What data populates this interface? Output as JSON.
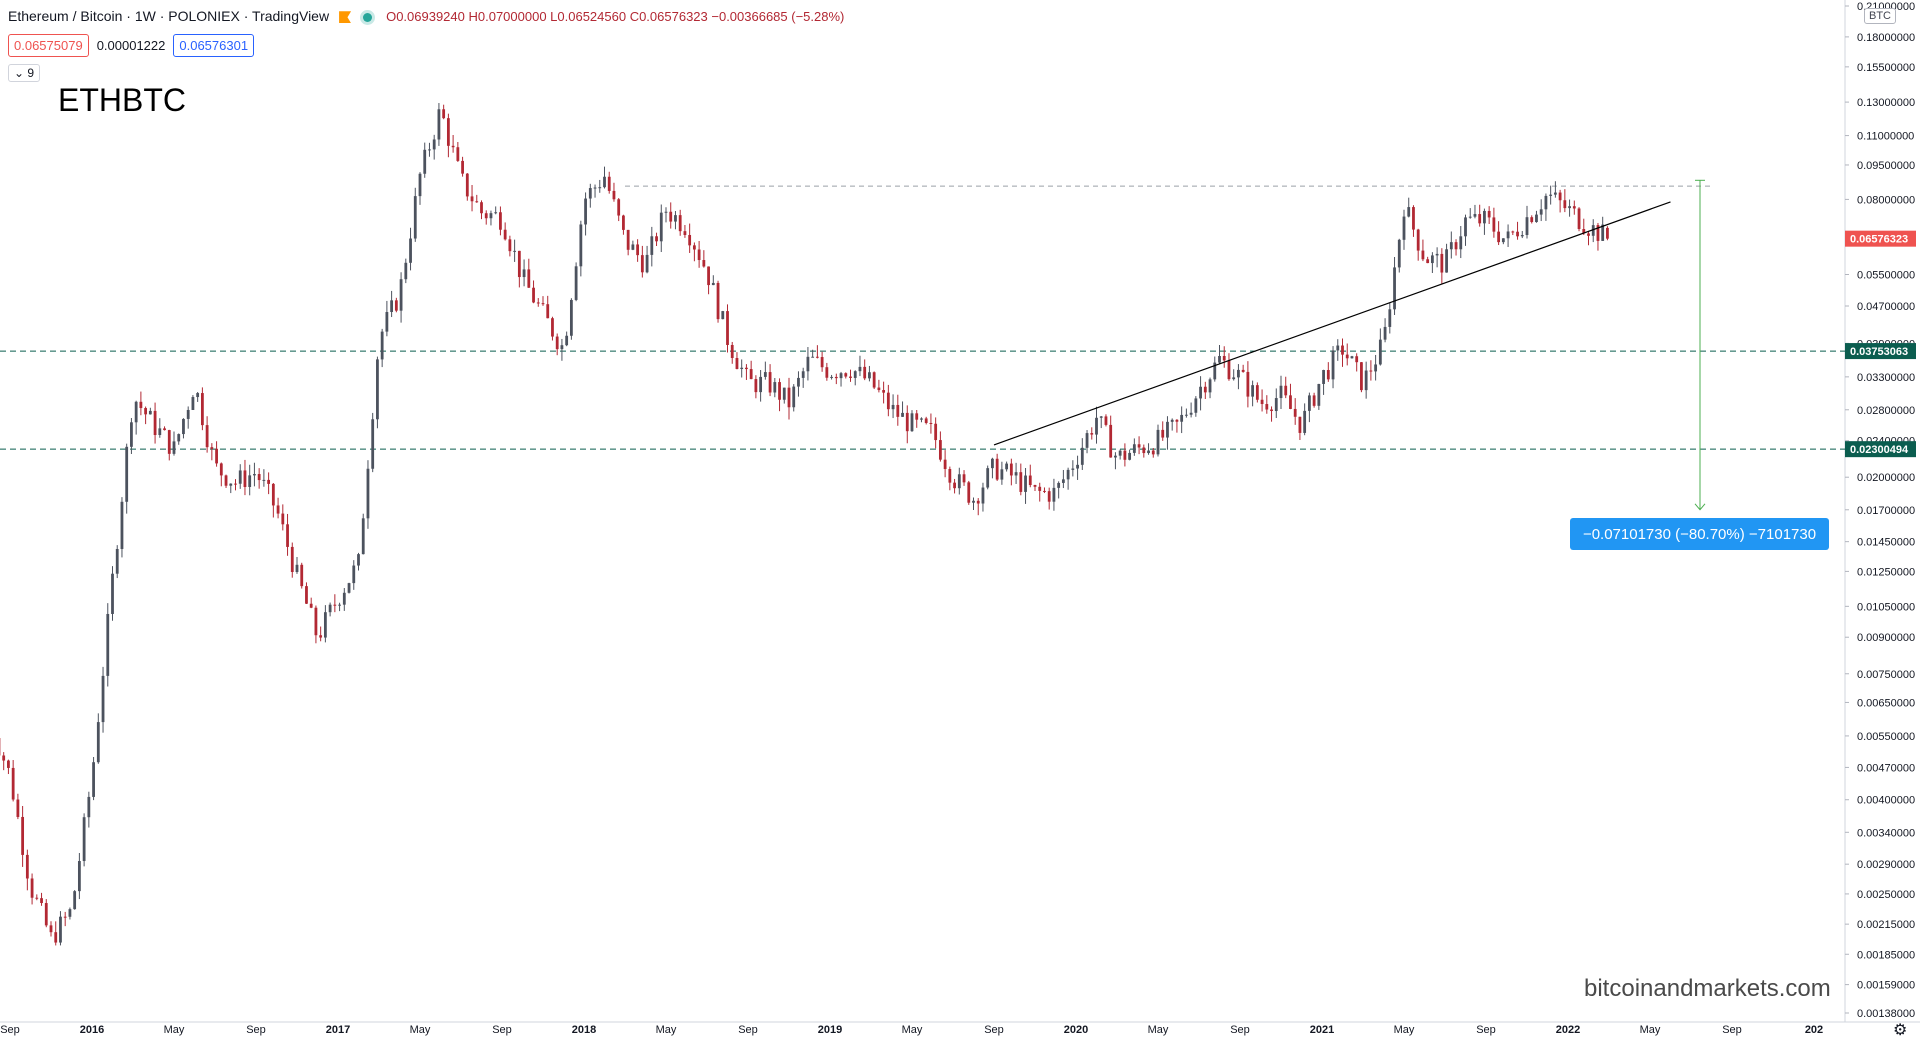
{
  "header": {
    "symbol_line": "Ethereum / Bitcoin · 1W · POLONIEX · TradingView",
    "ohlc": "O0.06939240 H0.07000000 L0.06524560 C0.06576323 −0.00366685 (−5.28%)",
    "bid": "0.06575079",
    "spread": "0.00001222",
    "ask": "0.06576301",
    "collapse_count": "9",
    "currency_badge": "BTC"
  },
  "annotations": {
    "title_text": "ETHBTC",
    "watermark": "bitcoinandmarkets.com",
    "measure_label": "−0.07101730 (−80.70%) −7101730"
  },
  "colors": {
    "up": "#4c525e",
    "down": "#b22833",
    "accent": "#2196f3",
    "level": "#0b5d4f",
    "last": "#ef5350"
  },
  "chart_data": {
    "type": "candlestick",
    "scale": "log",
    "title": "ETHBTC",
    "x_labels": [
      "Sep",
      "2016",
      "May",
      "Sep",
      "2017",
      "May",
      "Sep",
      "2018",
      "May",
      "Sep",
      "2019",
      "May",
      "Sep",
      "2020",
      "May",
      "Sep",
      "2021",
      "May",
      "Sep",
      "2022",
      "May",
      "Sep",
      "202"
    ],
    "y_ticks": [
      "0.21000000",
      "0.18000000",
      "0.15500000",
      "0.13000000",
      "0.11000000",
      "0.09500000",
      "0.08000000",
      "0.06500000",
      "0.05500000",
      "0.04700000",
      "0.03900000",
      "0.03300000",
      "0.02800000",
      "0.02400000",
      "0.02000000",
      "0.01700000",
      "0.01450000",
      "0.01250000",
      "0.01050000",
      "0.00900000",
      "0.00750000",
      "0.00650000",
      "0.00550000",
      "0.00470000",
      "0.00400000",
      "0.00340000",
      "0.00290000",
      "0.00250000",
      "0.00215000",
      "0.00185000",
      "0.00159000",
      "0.00138000"
    ],
    "ylim": [
      0.0013,
      0.21
    ],
    "horizontal_levels": [
      {
        "value": 0.03753063,
        "label": "0.03753063"
      },
      {
        "value": 0.02300494,
        "label": "0.02300494"
      }
    ],
    "resistance_level": 0.0855,
    "last_price": {
      "value": 0.06576323,
      "label": "0.06576323"
    },
    "trendline": {
      "from": [
        "2019-09",
        0.0235
      ],
      "to": [
        "2022-06",
        0.079
      ]
    },
    "measure": {
      "from": 0.088,
      "to": 0.017
    },
    "price_path": [
      [
        "2015-08",
        0.006
      ],
      [
        "2015-09",
        0.0045
      ],
      [
        "2015-10",
        0.0026
      ],
      [
        "2015-11",
        0.002
      ],
      [
        "2015-12",
        0.0023
      ],
      [
        "2016-01",
        0.0045
      ],
      [
        "2016-02",
        0.012
      ],
      [
        "2016-03",
        0.03
      ],
      [
        "2016-04",
        0.026
      ],
      [
        "2016-05",
        0.023
      ],
      [
        "2016-06",
        0.032
      ],
      [
        "2016-07",
        0.021
      ],
      [
        "2016-08",
        0.0195
      ],
      [
        "2016-09",
        0.0205
      ],
      [
        "2016-10",
        0.017
      ],
      [
        "2016-11",
        0.0122
      ],
      [
        "2016-12",
        0.009
      ],
      [
        "2017-01",
        0.011
      ],
      [
        "2017-02",
        0.013
      ],
      [
        "2017-03",
        0.04
      ],
      [
        "2017-04",
        0.05
      ],
      [
        "2017-05",
        0.09
      ],
      [
        "2017-06",
        0.125
      ],
      [
        "2017-07",
        0.088
      ],
      [
        "2017-08",
        0.075
      ],
      [
        "2017-09",
        0.073
      ],
      [
        "2017-10",
        0.054
      ],
      [
        "2017-11",
        0.045
      ],
      [
        "2017-12",
        0.038
      ],
      [
        "2018-01",
        0.08
      ],
      [
        "2018-02",
        0.09
      ],
      [
        "2018-03",
        0.065
      ],
      [
        "2018-04",
        0.058
      ],
      [
        "2018-05",
        0.076
      ],
      [
        "2018-06",
        0.07
      ],
      [
        "2018-07",
        0.056
      ],
      [
        "2018-08",
        0.04
      ],
      [
        "2018-09",
        0.032
      ],
      [
        "2018-10",
        0.032
      ],
      [
        "2018-11",
        0.029
      ],
      [
        "2018-12",
        0.036
      ],
      [
        "2019-01",
        0.034
      ],
      [
        "2019-02",
        0.0345
      ],
      [
        "2019-03",
        0.032
      ],
      [
        "2019-04",
        0.028
      ],
      [
        "2019-05",
        0.026
      ],
      [
        "2019-06",
        0.025
      ],
      [
        "2019-07",
        0.02
      ],
      [
        "2019-08",
        0.018
      ],
      [
        "2019-09",
        0.021
      ],
      [
        "2019-10",
        0.02
      ],
      [
        "2019-11",
        0.0185
      ],
      [
        "2019-12",
        0.0185
      ],
      [
        "2020-01",
        0.022
      ],
      [
        "2020-02",
        0.027
      ],
      [
        "2020-03",
        0.022
      ],
      [
        "2020-04",
        0.023
      ],
      [
        "2020-05",
        0.024
      ],
      [
        "2020-06",
        0.026
      ],
      [
        "2020-07",
        0.031
      ],
      [
        "2020-08",
        0.036
      ],
      [
        "2020-09",
        0.033
      ],
      [
        "2020-10",
        0.029
      ],
      [
        "2020-11",
        0.03
      ],
      [
        "2020-12",
        0.026
      ],
      [
        "2021-01",
        0.033
      ],
      [
        "2021-02",
        0.038
      ],
      [
        "2021-03",
        0.032
      ],
      [
        "2021-04",
        0.039
      ],
      [
        "2021-05",
        0.078
      ],
      [
        "2021-06",
        0.06
      ],
      [
        "2021-07",
        0.058
      ],
      [
        "2021-08",
        0.072
      ],
      [
        "2021-09",
        0.072
      ],
      [
        "2021-10",
        0.065
      ],
      [
        "2021-11",
        0.073
      ],
      [
        "2021-12",
        0.082
      ],
      [
        "2022-01",
        0.076
      ],
      [
        "2022-02",
        0.07
      ],
      [
        "2022-03",
        0.0658
      ]
    ]
  }
}
